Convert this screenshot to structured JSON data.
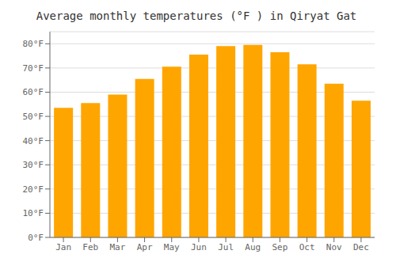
{
  "chart_data": {
    "type": "bar",
    "title": "Average monthly temperatures (°F ) in Qiryat Gat",
    "categories": [
      "Jan",
      "Feb",
      "Mar",
      "Apr",
      "May",
      "Jun",
      "Jul",
      "Aug",
      "Sep",
      "Oct",
      "Nov",
      "Dec"
    ],
    "values": [
      53.5,
      55.5,
      59.0,
      65.5,
      70.5,
      75.5,
      79.0,
      79.5,
      76.5,
      71.5,
      63.5,
      56.5
    ],
    "color": "#FFA500",
    "ylim": [
      0,
      85
    ],
    "yticks": [
      {
        "value": 0,
        "label": "0°F"
      },
      {
        "value": 10,
        "label": "10°F"
      },
      {
        "value": 20,
        "label": "20°F"
      },
      {
        "value": 30,
        "label": "30°F"
      },
      {
        "value": 40,
        "label": "40°F"
      },
      {
        "value": 50,
        "label": "50°F"
      },
      {
        "value": 60,
        "label": "60°F"
      },
      {
        "value": 70,
        "label": "70°F"
      },
      {
        "value": 80,
        "label": "80°F"
      }
    ],
    "grid": true
  }
}
